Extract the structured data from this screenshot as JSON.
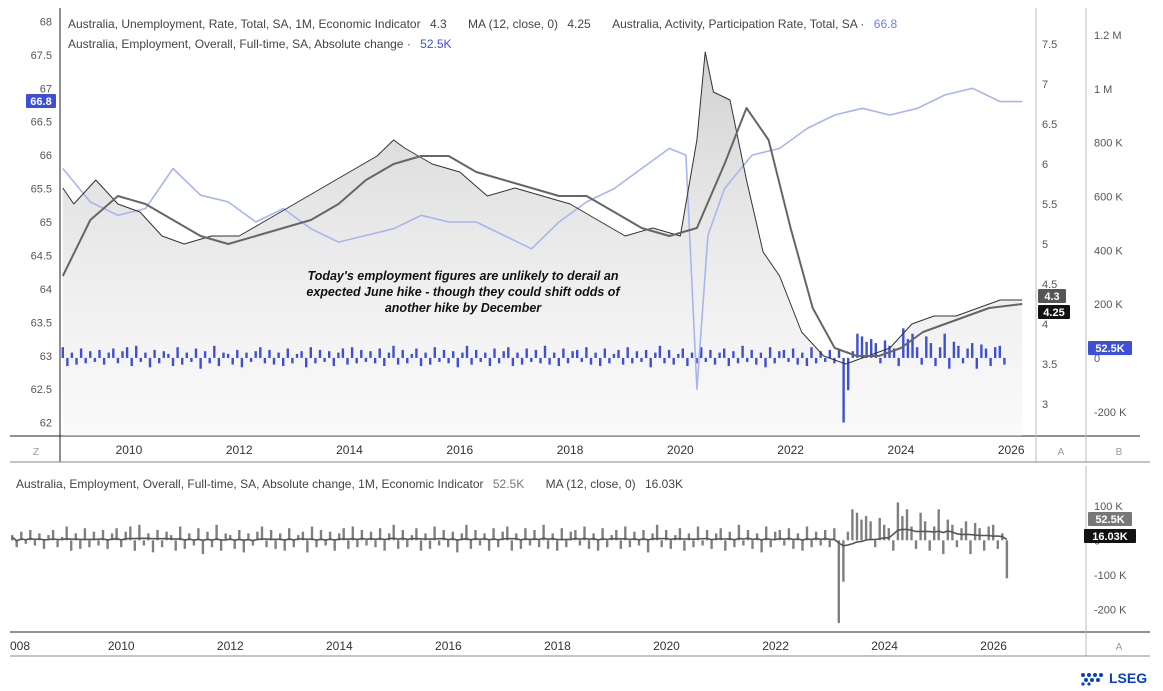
{
  "legend": {
    "unemployment_label": "Australia, Unemployment, Rate, Total, SA, 1M, Economic Indicator",
    "unemployment_value": "4.3",
    "ma_label": "MA (12, close, 0)",
    "ma_value": "4.25",
    "participation_label": "Australia, Activity, Participation Rate, Total, SA ·",
    "participation_value": "66.8",
    "employment_label": "Australia, Employment, Overall, Full-time, SA, Absolute change ·",
    "employment_value": "52.5K",
    "lower_label": "Australia, Employment, Overall, Full-time, SA, Absolute change, 1M, Economic Indicator",
    "lower_value": "52.5K",
    "lower_ma_label": "MA (12, close, 0)",
    "lower_ma_value": "16.03K"
  },
  "annotation": "Today's employment figures are unlikely to derail an expected June hike - though they could shift odds of another hike by December",
  "corner_labels": {
    "bottom_left": "Z",
    "axis_a": "A",
    "axis_b": "B",
    "lower_a": "A"
  },
  "badges": {
    "participation": "66.8",
    "unemployment": "4.3",
    "ma": "4.25",
    "employment": "52.5K",
    "lower_employment": "52.5K",
    "lower_ma": "16.03K"
  },
  "logo": "LSEG",
  "colors": {
    "participation": "#a9b5ee",
    "unemployment": "#333333",
    "ma": "#666666",
    "employment_bars": "#3d4fd6",
    "lower_bars": "#7f7f7f",
    "badge_blue": "#3d4fd6",
    "badge_grey": "#555555",
    "badge_black": "#111111"
  },
  "chart_data": [
    {
      "type": "line",
      "x_ticks": [
        "2010",
        "2012",
        "2014",
        "2016",
        "2018",
        "2020",
        "2022",
        "2024",
        "2026"
      ],
      "xlim": [
        "2008-09",
        "2026-06"
      ],
      "left_axis": {
        "ticks": [
          "62",
          "62.5",
          "63",
          "63.5",
          "64",
          "64.5",
          "65",
          "65.5",
          "66",
          "66.5",
          "67",
          "67.5",
          "68"
        ],
        "range": [
          61.8,
          68.2
        ]
      },
      "right_axis_a": {
        "ticks": [
          "3",
          "3.5",
          "4",
          "4.5",
          "5",
          "5.5",
          "6",
          "6.5",
          "7",
          "7.5"
        ],
        "range": [
          2.6,
          7.95
        ]
      },
      "right_axis_b": {
        "ticks": [
          "-200 K",
          "0",
          "200 K",
          "400 K",
          "600 K",
          "800 K",
          "1 M",
          "1.2 M"
        ],
        "range": [
          -290000,
          1300000
        ]
      },
      "series": [
        {
          "name": "Australia, Activity, Participation Rate, Total, SA",
          "axis": "left",
          "x": [
            2008.8,
            2009.3,
            2009.8,
            2010.3,
            2010.8,
            2011.3,
            2011.8,
            2012.3,
            2012.8,
            2013.3,
            2013.8,
            2014.3,
            2014.8,
            2015.3,
            2015.8,
            2016.3,
            2016.8,
            2017.3,
            2017.8,
            2018.3,
            2018.8,
            2019.3,
            2019.8,
            2020.1,
            2020.3,
            2020.5,
            2020.8,
            2021.3,
            2021.8,
            2022.3,
            2022.8,
            2023.3,
            2023.8,
            2024.3,
            2024.8,
            2025.3,
            2025.8,
            2026.2
          ],
          "y": [
            65.8,
            65.3,
            65.1,
            65.2,
            65.8,
            65.4,
            65.3,
            65.0,
            65.2,
            64.9,
            64.7,
            64.8,
            64.9,
            65.1,
            65.0,
            65.0,
            64.8,
            64.6,
            65.0,
            65.3,
            65.5,
            65.8,
            66.1,
            66.0,
            62.5,
            64.8,
            65.5,
            66.0,
            66.1,
            66.4,
            66.6,
            66.7,
            66.6,
            66.7,
            66.9,
            67.0,
            66.8,
            66.8
          ]
        },
        {
          "name": "Australia, Unemployment, Rate, Total, SA, 1M, Economic Indicator",
          "axis": "right_a",
          "fill": true,
          "x": [
            2008.8,
            2009.0,
            2009.4,
            2009.8,
            2010.2,
            2010.6,
            2011.0,
            2011.5,
            2012.0,
            2012.5,
            2013.0,
            2013.5,
            2014.0,
            2014.5,
            2014.8,
            2015.0,
            2015.5,
            2016.0,
            2016.5,
            2017.0,
            2017.5,
            2018.0,
            2018.5,
            2019.0,
            2019.5,
            2020.0,
            2020.3,
            2020.45,
            2020.6,
            2020.9,
            2021.2,
            2021.5,
            2021.8,
            2022.2,
            2022.6,
            2023.0,
            2023.4,
            2023.8,
            2024.2,
            2024.6,
            2025.0,
            2025.4,
            2025.8,
            2026.2
          ],
          "y": [
            5.7,
            5.5,
            5.8,
            5.5,
            5.4,
            5.1,
            5.0,
            5.1,
            5.1,
            5.3,
            5.5,
            5.7,
            5.9,
            6.1,
            6.3,
            6.2,
            6.0,
            5.9,
            5.6,
            5.7,
            5.6,
            5.5,
            5.3,
            5.1,
            5.2,
            5.1,
            6.3,
            7.4,
            6.9,
            6.8,
            5.8,
            4.9,
            4.6,
            3.9,
            3.6,
            3.5,
            3.6,
            3.7,
            4.0,
            4.1,
            4.1,
            4.2,
            4.3,
            4.3
          ]
        },
        {
          "name": "MA (12, close, 0)",
          "axis": "right_a",
          "x": [
            2008.8,
            2009.3,
            2009.8,
            2010.3,
            2010.8,
            2011.3,
            2011.8,
            2012.3,
            2012.8,
            2013.3,
            2013.8,
            2014.3,
            2014.8,
            2015.3,
            2015.8,
            2016.3,
            2016.8,
            2017.3,
            2017.8,
            2018.3,
            2018.8,
            2019.3,
            2019.8,
            2020.3,
            2020.8,
            2021.2,
            2021.6,
            2022.0,
            2022.4,
            2022.8,
            2023.2,
            2023.6,
            2024.0,
            2024.4,
            2024.8,
            2025.2,
            2025.6,
            2026.2
          ],
          "y": [
            4.6,
            5.3,
            5.6,
            5.5,
            5.3,
            5.1,
            5.0,
            5.1,
            5.2,
            5.3,
            5.5,
            5.8,
            6.0,
            6.1,
            6.1,
            5.9,
            5.8,
            5.7,
            5.6,
            5.6,
            5.4,
            5.2,
            5.1,
            5.2,
            6.0,
            6.7,
            6.3,
            5.2,
            4.2,
            3.7,
            3.6,
            3.6,
            3.7,
            3.9,
            4.0,
            4.1,
            4.2,
            4.25
          ]
        },
        {
          "name": "Australia, Employment, Overall, Full-time, SA, Absolute change",
          "axis": "right_b",
          "type": "bar",
          "x_start": 2008.8,
          "step": 0.0833,
          "values": [
            40,
            -30,
            20,
            -25,
            35,
            -20,
            25,
            -15,
            30,
            -25,
            20,
            35,
            -20,
            25,
            40,
            -30,
            45,
            -15,
            20,
            -35,
            30,
            -20,
            25,
            15,
            -30,
            40,
            -25,
            20,
            -15,
            35,
            -40,
            25,
            -20,
            45,
            -30,
            20,
            15,
            -25,
            30,
            -35,
            20,
            -15,
            25,
            40,
            -20,
            30,
            -25,
            20,
            -30,
            35,
            -20,
            15,
            25,
            -35,
            40,
            -20,
            30,
            -15,
            25,
            -30,
            20,
            35,
            -25,
            40,
            -20,
            30,
            -15,
            25,
            -20,
            35,
            -30,
            20,
            45,
            -25,
            30,
            -20,
            15,
            35,
            -30,
            20,
            -25,
            40,
            -15,
            30,
            -20,
            25,
            -35,
            20,
            45,
            -25,
            30,
            -15,
            20,
            -30,
            35,
            -20,
            25,
            40,
            -30,
            20,
            -25,
            35,
            -15,
            30,
            -20,
            45,
            -25,
            20,
            -30,
            35,
            -20,
            25,
            30,
            -15,
            40,
            -25,
            20,
            -30,
            35,
            -20,
            15,
            30,
            -25,
            40,
            -20,
            25,
            -15,
            30,
            -35,
            20,
            45,
            -20,
            30,
            -25,
            15,
            35,
            -30,
            20,
            -20,
            40,
            -15,
            30,
            -25,
            20,
            35,
            -30,
            25,
            -20,
            45,
            -15,
            30,
            -25,
            20,
            -35,
            40,
            -20,
            25,
            30,
            -15,
            35,
            -25,
            20,
            -30,
            40,
            -20,
            25,
            -15,
            30,
            -20,
            35,
            -240,
            -120,
            25,
            90,
            80,
            60,
            70,
            55,
            -20,
            65,
            45,
            35,
            -30,
            110,
            70,
            90,
            40,
            -25,
            80,
            55,
            -30,
            40,
            90,
            -40,
            60,
            45,
            -20,
            35,
            55,
            -40,
            50,
            35,
            -30,
            40,
            45,
            -25,
            20,
            -110,
            35,
            -20,
            40,
            25,
            -35,
            30,
            45,
            -25,
            20,
            35,
            -30,
            40,
            25,
            -45,
            55,
            30,
            -65,
            40,
            20,
            -35,
            52.5
          ]
        }
      ]
    },
    {
      "type": "bar",
      "x_ticks": [
        "008",
        "2010",
        "2012",
        "2014",
        "2016",
        "2018",
        "2020",
        "2022",
        "2024",
        "2026"
      ],
      "ylim": [
        -260000,
        140000
      ],
      "y_ticks": [
        "100 K",
        "0",
        "-100 K",
        "-200 K"
      ],
      "series": [
        {
          "name": "Australia, Employment, Overall, Full-time, SA, Absolute change, 1M, Economic Indicator",
          "x_start": 2008.0,
          "step": 0.0833,
          "values_ref": "same as upper employment series",
          "last": 52.5
        },
        {
          "name": "MA (12, close, 0)",
          "last": 16.03
        }
      ]
    }
  ]
}
